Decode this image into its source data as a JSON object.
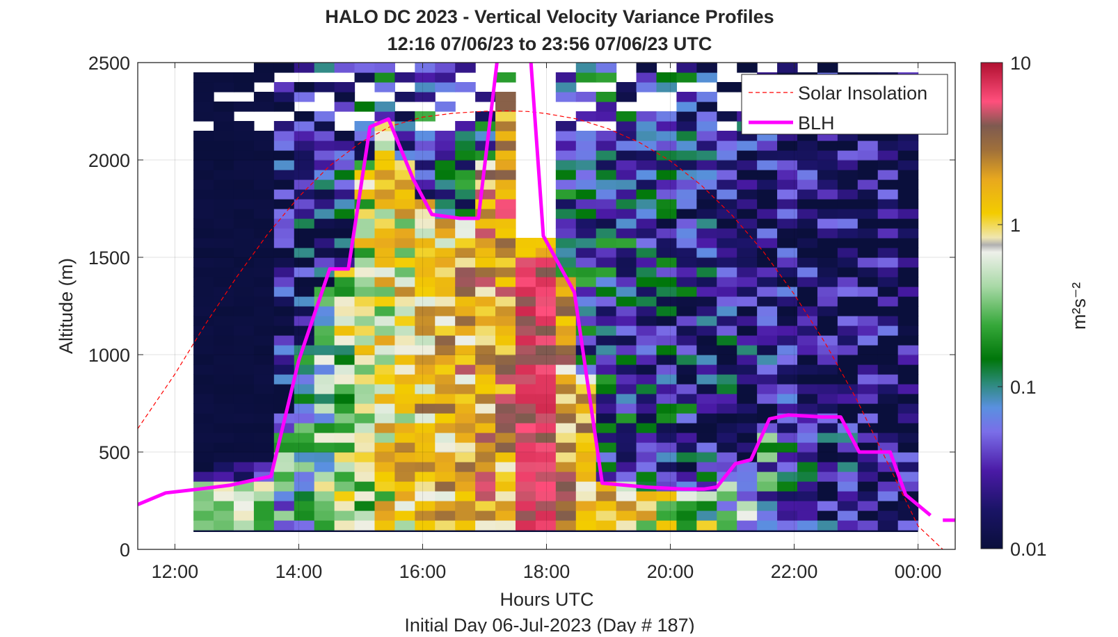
{
  "chart_data": {
    "type": "heatmap",
    "title": "HALO DC 2023 - Vertical Velocity Variance Profiles",
    "subtitle": "12:16 07/06/23 to 23:56 07/06/23  UTC",
    "xlabel": "Hours UTC",
    "x_sublabel": "Initial Day 06-Jul-2023 (Day # 187)",
    "ylabel": "Altitude (m)",
    "xlim": [
      11.4,
      24.6
    ],
    "ylim": [
      0,
      2500
    ],
    "x_ticks": [
      12,
      14,
      16,
      18,
      20,
      22,
      24
    ],
    "x_tick_labels": [
      "12:00",
      "14:00",
      "16:00",
      "18:00",
      "20:00",
      "22:00",
      "00:00"
    ],
    "y_ticks": [
      0,
      500,
      1000,
      1500,
      2000,
      2500
    ],
    "y_tick_labels": [
      "0",
      "500",
      "1000",
      "1500",
      "2000",
      "2500"
    ],
    "grid": true,
    "colorbar": {
      "label": "m²s⁻²",
      "scale": "log",
      "min": 0.01,
      "max": 10,
      "ticks": [
        0.01,
        0.1,
        1,
        10
      ],
      "tick_labels": [
        "0.01",
        "0.1",
        "1",
        "10"
      ]
    },
    "legend": {
      "placement": "top-right",
      "entries": [
        {
          "label": "Solar Insolation",
          "style": "dashed",
          "color": "#ff0000"
        },
        {
          "label": "BLH",
          "style": "solid",
          "color": "#ff00ff"
        }
      ]
    },
    "heatmap": {
      "time_start": 12.3,
      "time_end": 24.0,
      "alt_start": 100,
      "alt_end": 2500,
      "n_time": 36,
      "n_alt": 48,
      "bottom_row_value": 0.01
    },
    "solar_insolation": {
      "x": [
        11.4,
        12.0,
        12.5,
        13.0,
        13.5,
        14.0,
        14.5,
        15.0,
        15.5,
        16.0,
        16.5,
        17.0,
        17.35,
        17.7,
        18.0,
        18.5,
        19.0,
        19.5,
        20.0,
        20.5,
        21.0,
        21.5,
        22.0,
        22.5,
        23.0,
        23.5,
        24.0,
        24.4
      ],
      "y": [
        620,
        900,
        1160,
        1400,
        1620,
        1810,
        1970,
        2090,
        2175,
        2220,
        2240,
        2250,
        2252,
        2249,
        2238,
        2210,
        2160,
        2090,
        1995,
        1870,
        1715,
        1530,
        1310,
        1060,
        775,
        450,
        120,
        0
      ]
    },
    "blh": {
      "x": [
        11.4,
        11.85,
        12.4,
        12.9,
        13.4,
        13.55,
        14.0,
        14.5,
        14.8,
        15.15,
        15.45,
        15.85,
        16.15,
        16.6,
        16.9,
        17.2,
        17.35,
        17.6,
        17.75,
        17.95,
        18.45,
        18.9,
        19.6,
        20.2,
        20.55,
        20.75,
        21.05,
        21.3,
        21.6,
        21.9,
        22.2,
        22.45,
        22.75,
        23.05,
        23.55,
        23.8,
        24.2
      ],
      "y": [
        230,
        290,
        310,
        330,
        365,
        375,
        970,
        1440,
        1440,
        2170,
        2210,
        1900,
        1720,
        1700,
        1700,
        2500,
        2800,
        2800,
        2500,
        1610,
        1320,
        340,
        320,
        310,
        310,
        320,
        440,
        460,
        670,
        690,
        685,
        680,
        680,
        500,
        500,
        280,
        175
      ],
      "tail_x": [
        24.4,
        24.6
      ],
      "tail_y": [
        150,
        150
      ]
    }
  }
}
